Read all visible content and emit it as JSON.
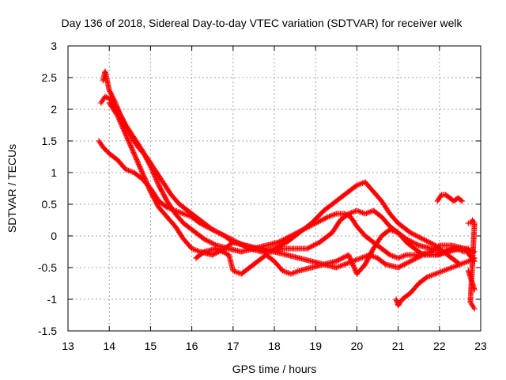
{
  "chart_data": {
    "type": "scatter",
    "title": "Day 136 of 2018, Sidereal Day-to-day VTEC variation (SDTVAR) for receiver welk",
    "xlabel": "GPS time / hours",
    "ylabel": "SDTVAR / TECUs",
    "xlim": [
      13,
      23
    ],
    "ylim": [
      -1.5,
      3
    ],
    "xticks": [
      "13",
      "14",
      "15",
      "16",
      "17",
      "18",
      "19",
      "20",
      "21",
      "22",
      "23"
    ],
    "yticks": [
      "-1.5",
      "-1",
      "-0.5",
      "0",
      "0.5",
      "1",
      "1.5",
      "2",
      "2.5",
      "3"
    ],
    "grid": true,
    "marker": "+",
    "color": "#ff0000",
    "series": [
      {
        "name": "track-a",
        "x": [
          13.75,
          13.85,
          14.0,
          14.2,
          14.4,
          14.6,
          14.8,
          15.0,
          15.2,
          15.4,
          15.6,
          15.8,
          16.0,
          16.2,
          16.5,
          16.8,
          17.0,
          17.3,
          17.6,
          17.8,
          18.0,
          18.3,
          18.6,
          18.9,
          19.2,
          19.5,
          19.7,
          19.9,
          20.1,
          20.3,
          20.5,
          20.7,
          21.0,
          21.3,
          21.6,
          21.9,
          22.2,
          22.5,
          22.7
        ],
        "y": [
          1.5,
          1.4,
          1.3,
          1.2,
          1.05,
          1.0,
          0.9,
          0.75,
          0.55,
          0.45,
          0.4,
          0.35,
          0.3,
          0.2,
          0.1,
          0.0,
          -0.1,
          -0.15,
          -0.2,
          -0.25,
          -0.25,
          -0.3,
          -0.35,
          -0.4,
          -0.45,
          -0.5,
          -0.45,
          -0.4,
          -0.35,
          -0.3,
          -0.35,
          -0.45,
          -0.5,
          -0.4,
          -0.3,
          -0.3,
          -0.25,
          -0.2,
          -0.2
        ]
      },
      {
        "name": "track-b",
        "x": [
          13.8,
          13.9,
          14.05,
          14.2,
          14.4,
          14.6,
          14.8,
          15.0,
          15.2,
          15.4,
          15.6,
          15.8,
          16.0,
          16.3,
          16.6,
          16.9,
          17.2,
          17.5,
          17.8,
          18.1,
          18.4,
          18.7,
          19.0,
          19.3,
          19.5,
          19.7,
          19.85,
          20.0,
          20.2,
          20.4,
          20.6,
          20.8,
          21.0,
          21.2,
          21.5,
          21.8,
          22.0,
          22.3,
          22.6,
          22.85
        ],
        "y": [
          2.1,
          2.2,
          2.15,
          2.0,
          1.75,
          1.55,
          1.35,
          1.1,
          0.8,
          0.55,
          0.35,
          0.2,
          0.1,
          -0.05,
          -0.15,
          -0.2,
          -0.25,
          -0.2,
          -0.15,
          -0.1,
          0.0,
          0.1,
          0.2,
          0.3,
          0.35,
          0.35,
          0.3,
          0.15,
          0.0,
          -0.1,
          -0.2,
          -0.3,
          -0.35,
          -0.3,
          -0.3,
          -0.25,
          -0.15,
          -0.15,
          -0.2,
          -0.4
        ]
      },
      {
        "name": "track-c",
        "x": [
          13.85,
          13.9,
          14.0,
          14.15,
          14.3,
          14.5,
          14.7,
          14.9,
          15.1,
          15.3,
          15.5,
          15.7,
          15.9,
          16.1,
          16.3,
          16.5,
          16.8,
          17.1,
          17.4,
          17.7,
          18.0,
          18.3,
          18.6,
          18.9,
          19.2,
          19.5,
          19.8,
          20.0,
          20.2,
          20.4,
          20.6,
          20.8,
          21.0,
          21.3,
          21.6,
          21.9,
          22.2,
          22.5
        ],
        "y": [
          2.45,
          2.6,
          2.3,
          2.1,
          1.85,
          1.6,
          1.4,
          1.25,
          1.05,
          0.85,
          0.65,
          0.5,
          0.4,
          0.3,
          0.2,
          0.1,
          0.0,
          -0.1,
          -0.2,
          -0.25,
          -0.2,
          -0.1,
          0.05,
          0.2,
          0.4,
          0.55,
          0.7,
          0.8,
          0.85,
          0.7,
          0.55,
          0.35,
          0.2,
          0.05,
          -0.05,
          -0.15,
          -0.3,
          -0.45
        ]
      },
      {
        "name": "track-d",
        "x": [
          14.0,
          14.2,
          14.4,
          14.6,
          14.8,
          15.0,
          15.2,
          15.4,
          15.6,
          15.8,
          16.0,
          16.2,
          16.5,
          16.8,
          17.0,
          17.3,
          17.6,
          17.9,
          18.2,
          18.5,
          18.8,
          19.1,
          19.4,
          19.6,
          19.8,
          20.0,
          20.2,
          20.4,
          20.6,
          20.8,
          21.0,
          21.2,
          21.5,
          21.8,
          22.1,
          22.4,
          22.6
        ],
        "y": [
          2.1,
          1.9,
          1.6,
          1.3,
          1.0,
          0.7,
          0.45,
          0.3,
          0.15,
          -0.05,
          -0.2,
          -0.25,
          -0.3,
          -0.2,
          -0.1,
          -0.15,
          -0.2,
          -0.25,
          -0.2,
          -0.2,
          -0.2,
          -0.1,
          0.05,
          0.25,
          0.35,
          0.4,
          0.35,
          0.4,
          0.3,
          0.15,
          0.05,
          -0.05,
          -0.15,
          -0.2,
          -0.25,
          -0.2,
          -0.25
        ]
      },
      {
        "name": "track-e",
        "x": [
          16.1,
          16.3,
          16.6,
          16.9,
          17.0,
          17.2,
          17.5,
          17.8,
          18.0,
          18.2,
          18.4,
          18.6,
          18.9,
          19.2,
          19.5,
          19.8,
          19.9,
          20.0,
          20.2,
          20.4,
          20.6,
          20.8,
          21.0,
          21.2,
          21.4,
          21.6,
          21.8,
          22.0,
          22.3,
          22.6,
          22.85
        ],
        "y": [
          -0.35,
          -0.25,
          -0.2,
          -0.3,
          -0.55,
          -0.6,
          -0.45,
          -0.3,
          -0.4,
          -0.55,
          -0.6,
          -0.55,
          -0.5,
          -0.45,
          -0.4,
          -0.3,
          -0.45,
          -0.6,
          -0.45,
          -0.2,
          0.0,
          0.1,
          0.05,
          -0.1,
          -0.2,
          -0.3,
          -0.3,
          -0.3,
          -0.2,
          -0.2,
          -0.25
        ]
      },
      {
        "name": "track-f",
        "x": [
          20.95,
          21.0,
          21.1,
          21.2,
          21.3,
          21.5,
          21.7,
          21.9,
          22.1,
          22.3,
          22.5,
          22.7,
          22.85
        ],
        "y": [
          -1.0,
          -1.1,
          -1.0,
          -0.95,
          -0.9,
          -0.75,
          -0.65,
          -0.6,
          -0.55,
          -0.5,
          -0.45,
          -0.4,
          -0.35
        ]
      },
      {
        "name": "track-g",
        "x": [
          21.95,
          22.05,
          22.15,
          22.25,
          22.35,
          22.45,
          22.55
        ],
        "y": [
          0.55,
          0.65,
          0.65,
          0.6,
          0.55,
          0.6,
          0.55
        ]
      },
      {
        "name": "track-h",
        "x": [
          22.7,
          22.75,
          22.8,
          22.85,
          22.75,
          22.8,
          22.85
        ],
        "y": [
          0.2,
          0.2,
          0.25,
          0.2,
          -1.05,
          -1.1,
          -1.15
        ]
      },
      {
        "name": "track-i",
        "x": [
          22.7,
          22.75,
          22.8,
          22.85
        ],
        "y": [
          -0.55,
          -0.65,
          -0.75,
          -0.85
        ]
      }
    ]
  }
}
